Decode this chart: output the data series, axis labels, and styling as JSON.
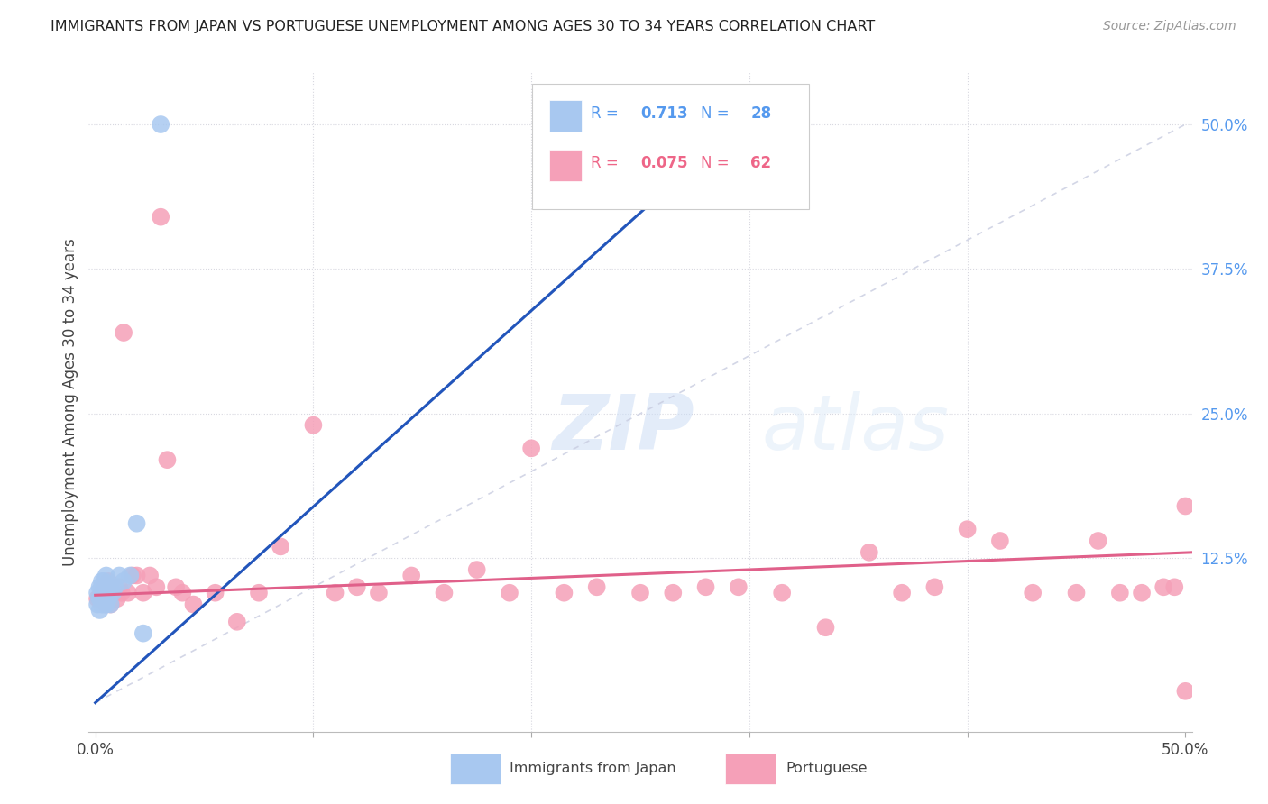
{
  "title": "IMMIGRANTS FROM JAPAN VS PORTUGUESE UNEMPLOYMENT AMONG AGES 30 TO 34 YEARS CORRELATION CHART",
  "source": "Source: ZipAtlas.com",
  "ylabel": "Unemployment Among Ages 30 to 34 years",
  "xlim": [
    -0.003,
    0.503
  ],
  "ylim": [
    -0.025,
    0.545
  ],
  "japan_R": 0.713,
  "japan_N": 28,
  "portuguese_R": 0.075,
  "portuguese_N": 62,
  "japan_color": "#a8c8f0",
  "japanese_line_color": "#2255bb",
  "portuguese_color": "#f5a0b8",
  "portuguese_line_color": "#e0608a",
  "ref_line_color": "#c8cce0",
  "grid_color": "#d8d8e0",
  "background_color": "#ffffff",
  "watermark_zip": "ZIP",
  "watermark_atlas": "atlas",
  "japan_x": [
    0.001,
    0.001,
    0.002,
    0.002,
    0.002,
    0.003,
    0.003,
    0.003,
    0.003,
    0.004,
    0.004,
    0.004,
    0.005,
    0.005,
    0.005,
    0.005,
    0.006,
    0.006,
    0.007,
    0.007,
    0.008,
    0.009,
    0.011,
    0.013,
    0.016,
    0.019,
    0.022,
    0.03
  ],
  "japan_y": [
    0.085,
    0.095,
    0.08,
    0.09,
    0.1,
    0.085,
    0.09,
    0.1,
    0.105,
    0.085,
    0.095,
    0.105,
    0.085,
    0.09,
    0.1,
    0.11,
    0.09,
    0.1,
    0.085,
    0.1,
    0.095,
    0.1,
    0.11,
    0.105,
    0.11,
    0.155,
    0.06,
    0.5
  ],
  "portuguese_x": [
    0.001,
    0.002,
    0.003,
    0.004,
    0.004,
    0.005,
    0.006,
    0.006,
    0.007,
    0.007,
    0.008,
    0.009,
    0.01,
    0.011,
    0.012,
    0.013,
    0.015,
    0.017,
    0.019,
    0.022,
    0.025,
    0.028,
    0.03,
    0.033,
    0.037,
    0.04,
    0.045,
    0.055,
    0.065,
    0.075,
    0.085,
    0.1,
    0.11,
    0.12,
    0.13,
    0.145,
    0.16,
    0.175,
    0.19,
    0.2,
    0.215,
    0.23,
    0.25,
    0.265,
    0.28,
    0.295,
    0.315,
    0.335,
    0.355,
    0.37,
    0.385,
    0.4,
    0.415,
    0.43,
    0.45,
    0.46,
    0.47,
    0.48,
    0.49,
    0.495,
    0.5,
    0.5
  ],
  "portuguese_y": [
    0.09,
    0.09,
    0.095,
    0.095,
    0.1,
    0.085,
    0.095,
    0.105,
    0.085,
    0.1,
    0.095,
    0.095,
    0.09,
    0.1,
    0.095,
    0.32,
    0.095,
    0.11,
    0.11,
    0.095,
    0.11,
    0.1,
    0.42,
    0.21,
    0.1,
    0.095,
    0.085,
    0.095,
    0.07,
    0.095,
    0.135,
    0.24,
    0.095,
    0.1,
    0.095,
    0.11,
    0.095,
    0.115,
    0.095,
    0.22,
    0.095,
    0.1,
    0.095,
    0.095,
    0.1,
    0.1,
    0.095,
    0.065,
    0.13,
    0.095,
    0.1,
    0.15,
    0.14,
    0.095,
    0.095,
    0.14,
    0.095,
    0.095,
    0.1,
    0.1,
    0.17,
    0.01
  ],
  "japan_line_x0": 0.0,
  "japan_line_y0": 0.0,
  "japan_line_x1": 0.295,
  "japan_line_y1": 0.5,
  "portuguese_line_x0": 0.0,
  "portuguese_line_y0": 0.093,
  "portuguese_line_x1": 0.503,
  "portuguese_line_y1": 0.13
}
